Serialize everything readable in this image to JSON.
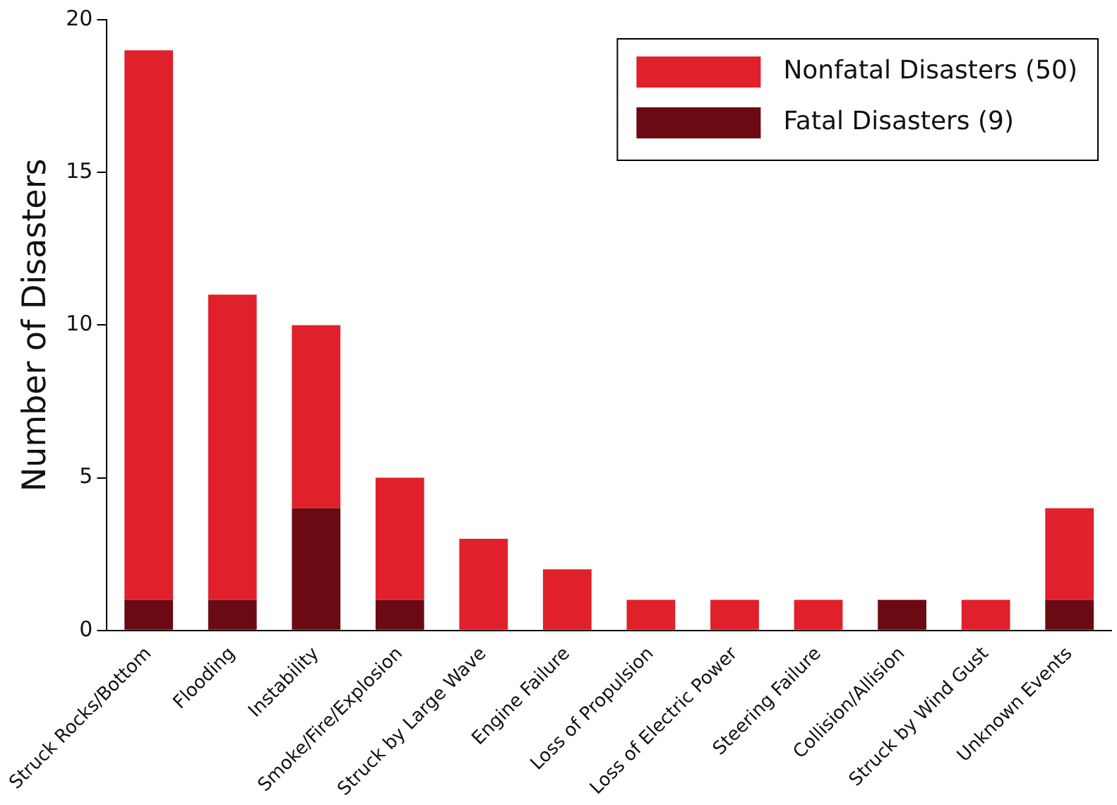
{
  "chart_data": {
    "type": "bar",
    "stacked": true,
    "ylabel": "Number of Disasters",
    "categories": [
      "Struck Rocks/Bottom",
      "Flooding",
      "Instability",
      "Smoke/Fire/Explosion",
      "Struck by Large Wave",
      "Engine Failure",
      "Loss of Propulsion",
      "Loss of Electric Power",
      "Steering Failure",
      "Collision/Allision",
      "Struck by Wind Gust",
      "Unknown Events"
    ],
    "series": [
      {
        "name": "Fatal Disasters (9)",
        "color": "#6b0a12",
        "values": [
          1,
          1,
          4,
          1,
          0,
          0,
          0,
          0,
          0,
          1,
          0,
          1
        ]
      },
      {
        "name": "Nonfatal Disasters (50)",
        "color": "#e0202a",
        "values": [
          18,
          10,
          6,
          4,
          3,
          2,
          1,
          1,
          1,
          0,
          1,
          3
        ]
      }
    ],
    "ylim": [
      0,
      20
    ],
    "yticks": [
      0,
      5,
      10,
      15,
      20
    ],
    "grid": false,
    "legend": "top right"
  }
}
